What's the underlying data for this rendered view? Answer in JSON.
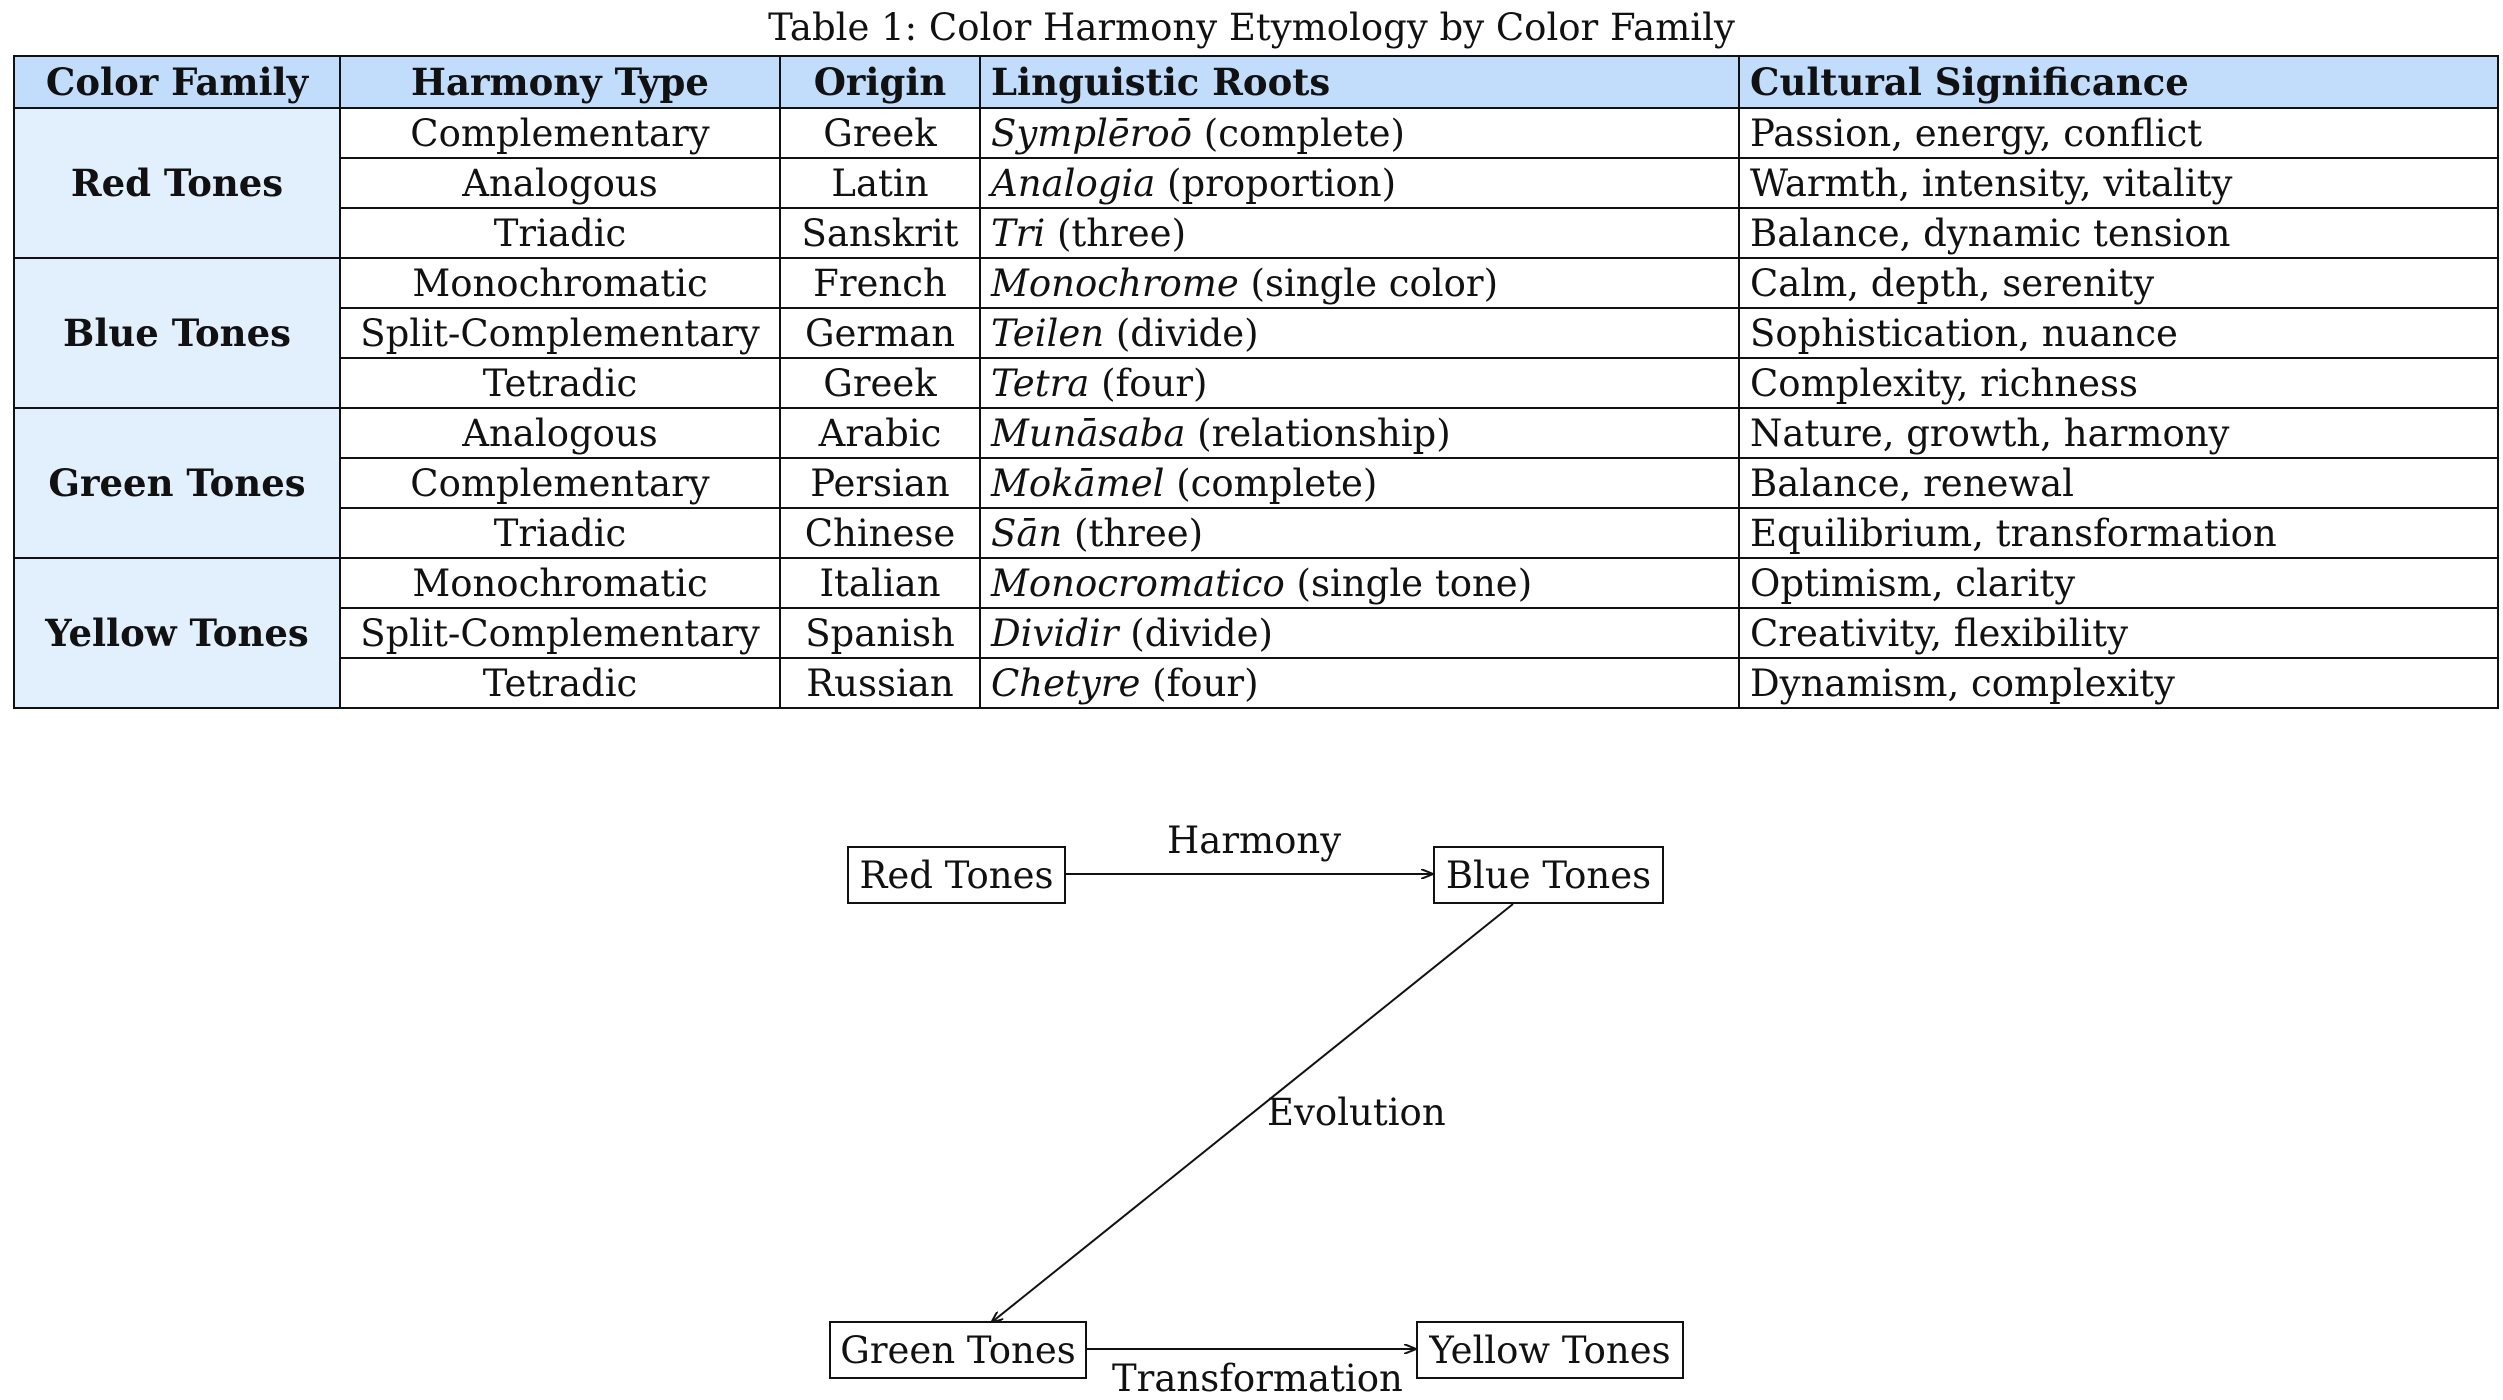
{
  "caption": "Table 1: Color Harmony Etymology by Color Family",
  "table": {
    "headers": {
      "family": "Color Family",
      "harmony": "Harmony Type",
      "origin": "Origin",
      "roots": "Linguistic Roots",
      "cultural": "Cultural Significance"
    },
    "groups": [
      {
        "family": "Red Tones",
        "rows": [
          {
            "harmony": "Complementary",
            "origin": "Greek",
            "root_term": "Symplēroō",
            "root_gloss": " (complete)",
            "cultural": "Passion, energy, conflict"
          },
          {
            "harmony": "Analogous",
            "origin": "Latin",
            "root_term": "Analogia",
            "root_gloss": " (proportion)",
            "cultural": "Warmth, intensity, vitality"
          },
          {
            "harmony": "Triadic",
            "origin": "Sanskrit",
            "root_term": "Tri",
            "root_gloss": " (three)",
            "cultural": "Balance, dynamic tension"
          }
        ]
      },
      {
        "family": "Blue Tones",
        "rows": [
          {
            "harmony": "Monochromatic",
            "origin": "French",
            "root_term": "Monochrome",
            "root_gloss": " (single color)",
            "cultural": "Calm, depth, serenity"
          },
          {
            "harmony": "Split-Complementary",
            "origin": "German",
            "root_term": "Teilen",
            "root_gloss": " (divide)",
            "cultural": "Sophistication, nuance"
          },
          {
            "harmony": "Tetradic",
            "origin": "Greek",
            "root_term": "Tetra",
            "root_gloss": " (four)",
            "cultural": "Complexity, richness"
          }
        ]
      },
      {
        "family": "Green Tones",
        "rows": [
          {
            "harmony": "Analogous",
            "origin": "Arabic",
            "root_term": "Munāsaba",
            "root_gloss": " (relationship)",
            "cultural": "Nature, growth, harmony"
          },
          {
            "harmony": "Complementary",
            "origin": "Persian",
            "root_term": "Mokāmel",
            "root_gloss": " (complete)",
            "cultural": "Balance, renewal"
          },
          {
            "harmony": "Triadic",
            "origin": "Chinese",
            "root_term": "Sān",
            "root_gloss": " (three)",
            "cultural": "Equilibrium, transformation"
          }
        ]
      },
      {
        "family": "Yellow Tones",
        "rows": [
          {
            "harmony": "Monochromatic",
            "origin": "Italian",
            "root_term": "Monocromatico",
            "root_gloss": " (single tone)",
            "cultural": "Optimism, clarity"
          },
          {
            "harmony": "Split-Complementary",
            "origin": "Spanish",
            "root_term": "Dividir",
            "root_gloss": " (divide)",
            "cultural": "Creativity, flexibility"
          },
          {
            "harmony": "Tetradic",
            "origin": "Russian",
            "root_term": "Chetyre",
            "root_gloss": " (four)",
            "cultural": "Dynamism, complexity"
          }
        ]
      }
    ]
  },
  "diagram": {
    "nodes": {
      "red": "Red Tones",
      "blue": "Blue Tones",
      "green": "Green Tones",
      "yellow": "Yellow Tones"
    },
    "edges": {
      "red_blue": "Harmony",
      "blue_green": "Evolution",
      "green_yellow": "Transformation"
    }
  },
  "colors": {
    "header_bg": "#c2ddfb",
    "family_bg": "#e2effd",
    "line": "#111111"
  }
}
